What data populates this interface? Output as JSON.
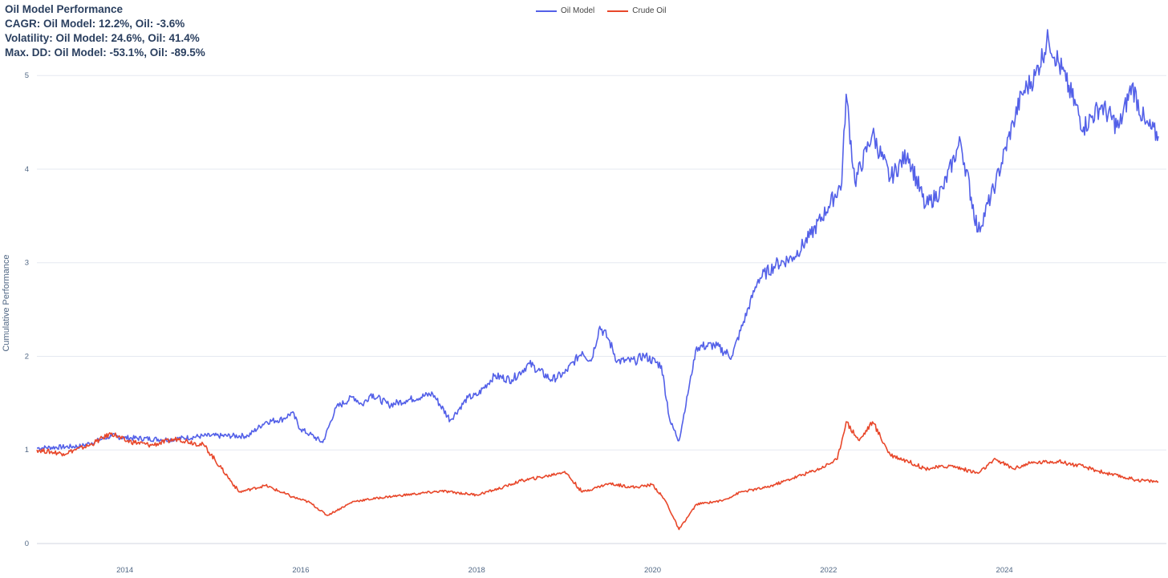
{
  "header": {
    "title": "Oil Model Performance",
    "line1": "CAGR: Oil Model: 12.2%, Oil: -3.6%",
    "line2": "Volatility: Oil Model: 24.6%, Oil: 41.4%",
    "line3": "Max. DD: Oil Model: -53.1%, Oil: -89.5%"
  },
  "chart_data": {
    "type": "line",
    "title": "Oil Model Performance",
    "xlabel": "",
    "ylabel": "Cumulative Performance",
    "xlim": [
      2013.0,
      2025.75
    ],
    "ylim": [
      0,
      5.55
    ],
    "x_ticks": [
      "2014",
      "2016",
      "2018",
      "2020",
      "2022",
      "2024"
    ],
    "y_ticks": [
      "0",
      "1",
      "2",
      "3",
      "4",
      "5"
    ],
    "grid": true,
    "legend_position": "top-center",
    "series": [
      {
        "name": "Oil Model",
        "color": "#5360e8",
        "x": [
          2013.0,
          2013.5,
          2013.85,
          2014.0,
          2014.5,
          2014.9,
          2015.4,
          2015.6,
          2015.8,
          2015.9,
          2016.0,
          2016.1,
          2016.25,
          2016.4,
          2016.6,
          2016.7,
          2016.8,
          2017.0,
          2017.2,
          2017.5,
          2017.7,
          2017.9,
          2018.0,
          2018.2,
          2018.4,
          2018.6,
          2018.85,
          2019.0,
          2019.2,
          2019.3,
          2019.4,
          2019.5,
          2019.6,
          2019.8,
          2019.9,
          2020.1,
          2020.2,
          2020.3,
          2020.5,
          2020.7,
          2020.9,
          2021.2,
          2021.4,
          2021.6,
          2021.8,
          2022.0,
          2022.15,
          2022.2,
          2022.3,
          2022.5,
          2022.7,
          2022.9,
          2023.1,
          2023.3,
          2023.5,
          2023.7,
          2023.9,
          2024.1,
          2024.2,
          2024.35,
          2024.5,
          2024.7,
          2024.9,
          2025.1,
          2025.3,
          2025.45,
          2025.6,
          2025.75
        ],
        "y": [
          1.02,
          1.04,
          1.15,
          1.13,
          1.11,
          1.15,
          1.15,
          1.3,
          1.33,
          1.4,
          1.22,
          1.17,
          1.08,
          1.45,
          1.57,
          1.48,
          1.6,
          1.48,
          1.53,
          1.6,
          1.32,
          1.56,
          1.58,
          1.79,
          1.75,
          1.92,
          1.75,
          1.82,
          2.05,
          1.95,
          2.32,
          2.18,
          1.95,
          1.95,
          2.01,
          1.9,
          1.3,
          1.1,
          2.1,
          2.12,
          2.0,
          2.82,
          2.98,
          3.06,
          3.3,
          3.6,
          3.85,
          4.8,
          3.86,
          4.38,
          3.9,
          4.17,
          3.6,
          3.79,
          4.3,
          3.33,
          3.85,
          4.5,
          4.8,
          5.0,
          5.4,
          4.94,
          4.45,
          4.68,
          4.44,
          4.9,
          4.48,
          4.35
        ]
      },
      {
        "name": "Crude Oil",
        "color": "#e8472a",
        "x": [
          2013.0,
          2013.3,
          2013.6,
          2013.85,
          2014.0,
          2014.3,
          2014.6,
          2014.9,
          2015.1,
          2015.3,
          2015.6,
          2015.9,
          2016.1,
          2016.3,
          2016.6,
          2017.0,
          2017.3,
          2017.6,
          2018.0,
          2018.3,
          2018.5,
          2018.8,
          2019.0,
          2019.2,
          2019.5,
          2019.8,
          2020.0,
          2020.15,
          2020.3,
          2020.5,
          2020.8,
          2021.0,
          2021.3,
          2021.6,
          2021.9,
          2022.1,
          2022.2,
          2022.35,
          2022.5,
          2022.7,
          2022.9,
          2023.1,
          2023.4,
          2023.7,
          2023.9,
          2024.1,
          2024.3,
          2024.6,
          2024.9,
          2025.2,
          2025.5,
          2025.75
        ],
        "y": [
          1.0,
          0.96,
          1.05,
          1.18,
          1.1,
          1.05,
          1.12,
          1.05,
          0.8,
          0.55,
          0.62,
          0.5,
          0.44,
          0.3,
          0.45,
          0.5,
          0.53,
          0.56,
          0.52,
          0.6,
          0.67,
          0.72,
          0.77,
          0.55,
          0.64,
          0.6,
          0.63,
          0.45,
          0.15,
          0.42,
          0.46,
          0.55,
          0.6,
          0.7,
          0.8,
          0.9,
          1.3,
          1.1,
          1.3,
          0.95,
          0.88,
          0.8,
          0.83,
          0.75,
          0.9,
          0.8,
          0.86,
          0.88,
          0.82,
          0.74,
          0.68,
          0.66
        ]
      }
    ]
  }
}
